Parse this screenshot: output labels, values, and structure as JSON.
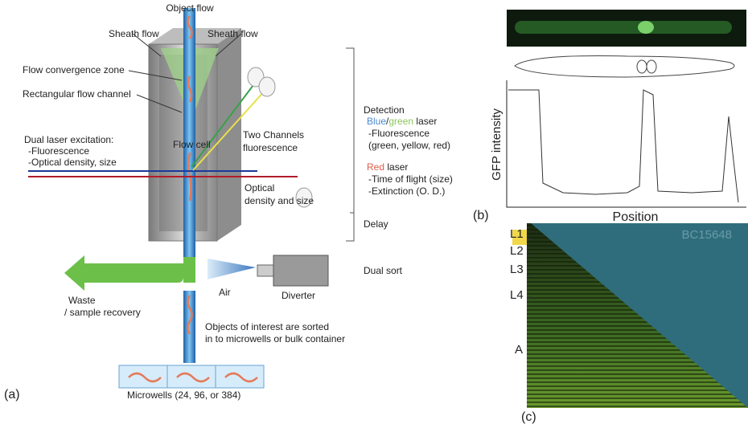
{
  "panel_a": {
    "label": "(a)",
    "object_flow": "Object flow",
    "sheath_left": "Sheath flow",
    "sheath_right": "Sheath flow",
    "convergence": "Flow convergence zone",
    "channel": "Rectangular flow channel",
    "excitation": [
      "Dual laser excitation:",
      "-Fluorescence",
      "-Optical density, size"
    ],
    "flow_cell": "Flow cell",
    "two_channels": [
      "Two Channels",
      "fluorescence"
    ],
    "optical": [
      "Optical",
      "density and size"
    ],
    "detection": {
      "title": "Detection",
      "blue": "Blue",
      "slash": "/",
      "green": "green",
      "laser1": " laser",
      "fluor": "-Fluorescence",
      "colors": "(green, yellow, red)",
      "red": "Red",
      "laser2": " laser",
      "tof": "-Time of flight (size)",
      "ext": "-Extinction (O. D.)"
    },
    "delay": "Delay",
    "dual_sort": "Dual sort",
    "waste": [
      "Waste",
      "/ sample recovery"
    ],
    "air": "Air",
    "diverter": "Diverter",
    "sorted": [
      "Objects of interest are sorted",
      "in to microwells or bulk container"
    ],
    "microwells": "Microwells (24, 96, or 384)"
  },
  "panel_b": {
    "label": "(b)",
    "y_label": "GFP intensity",
    "x_label": "Position"
  },
  "panel_c": {
    "label": "(c)",
    "strain": "BC15648",
    "stages": [
      "L1",
      "L2",
      "L3",
      "L4",
      "A"
    ]
  }
}
